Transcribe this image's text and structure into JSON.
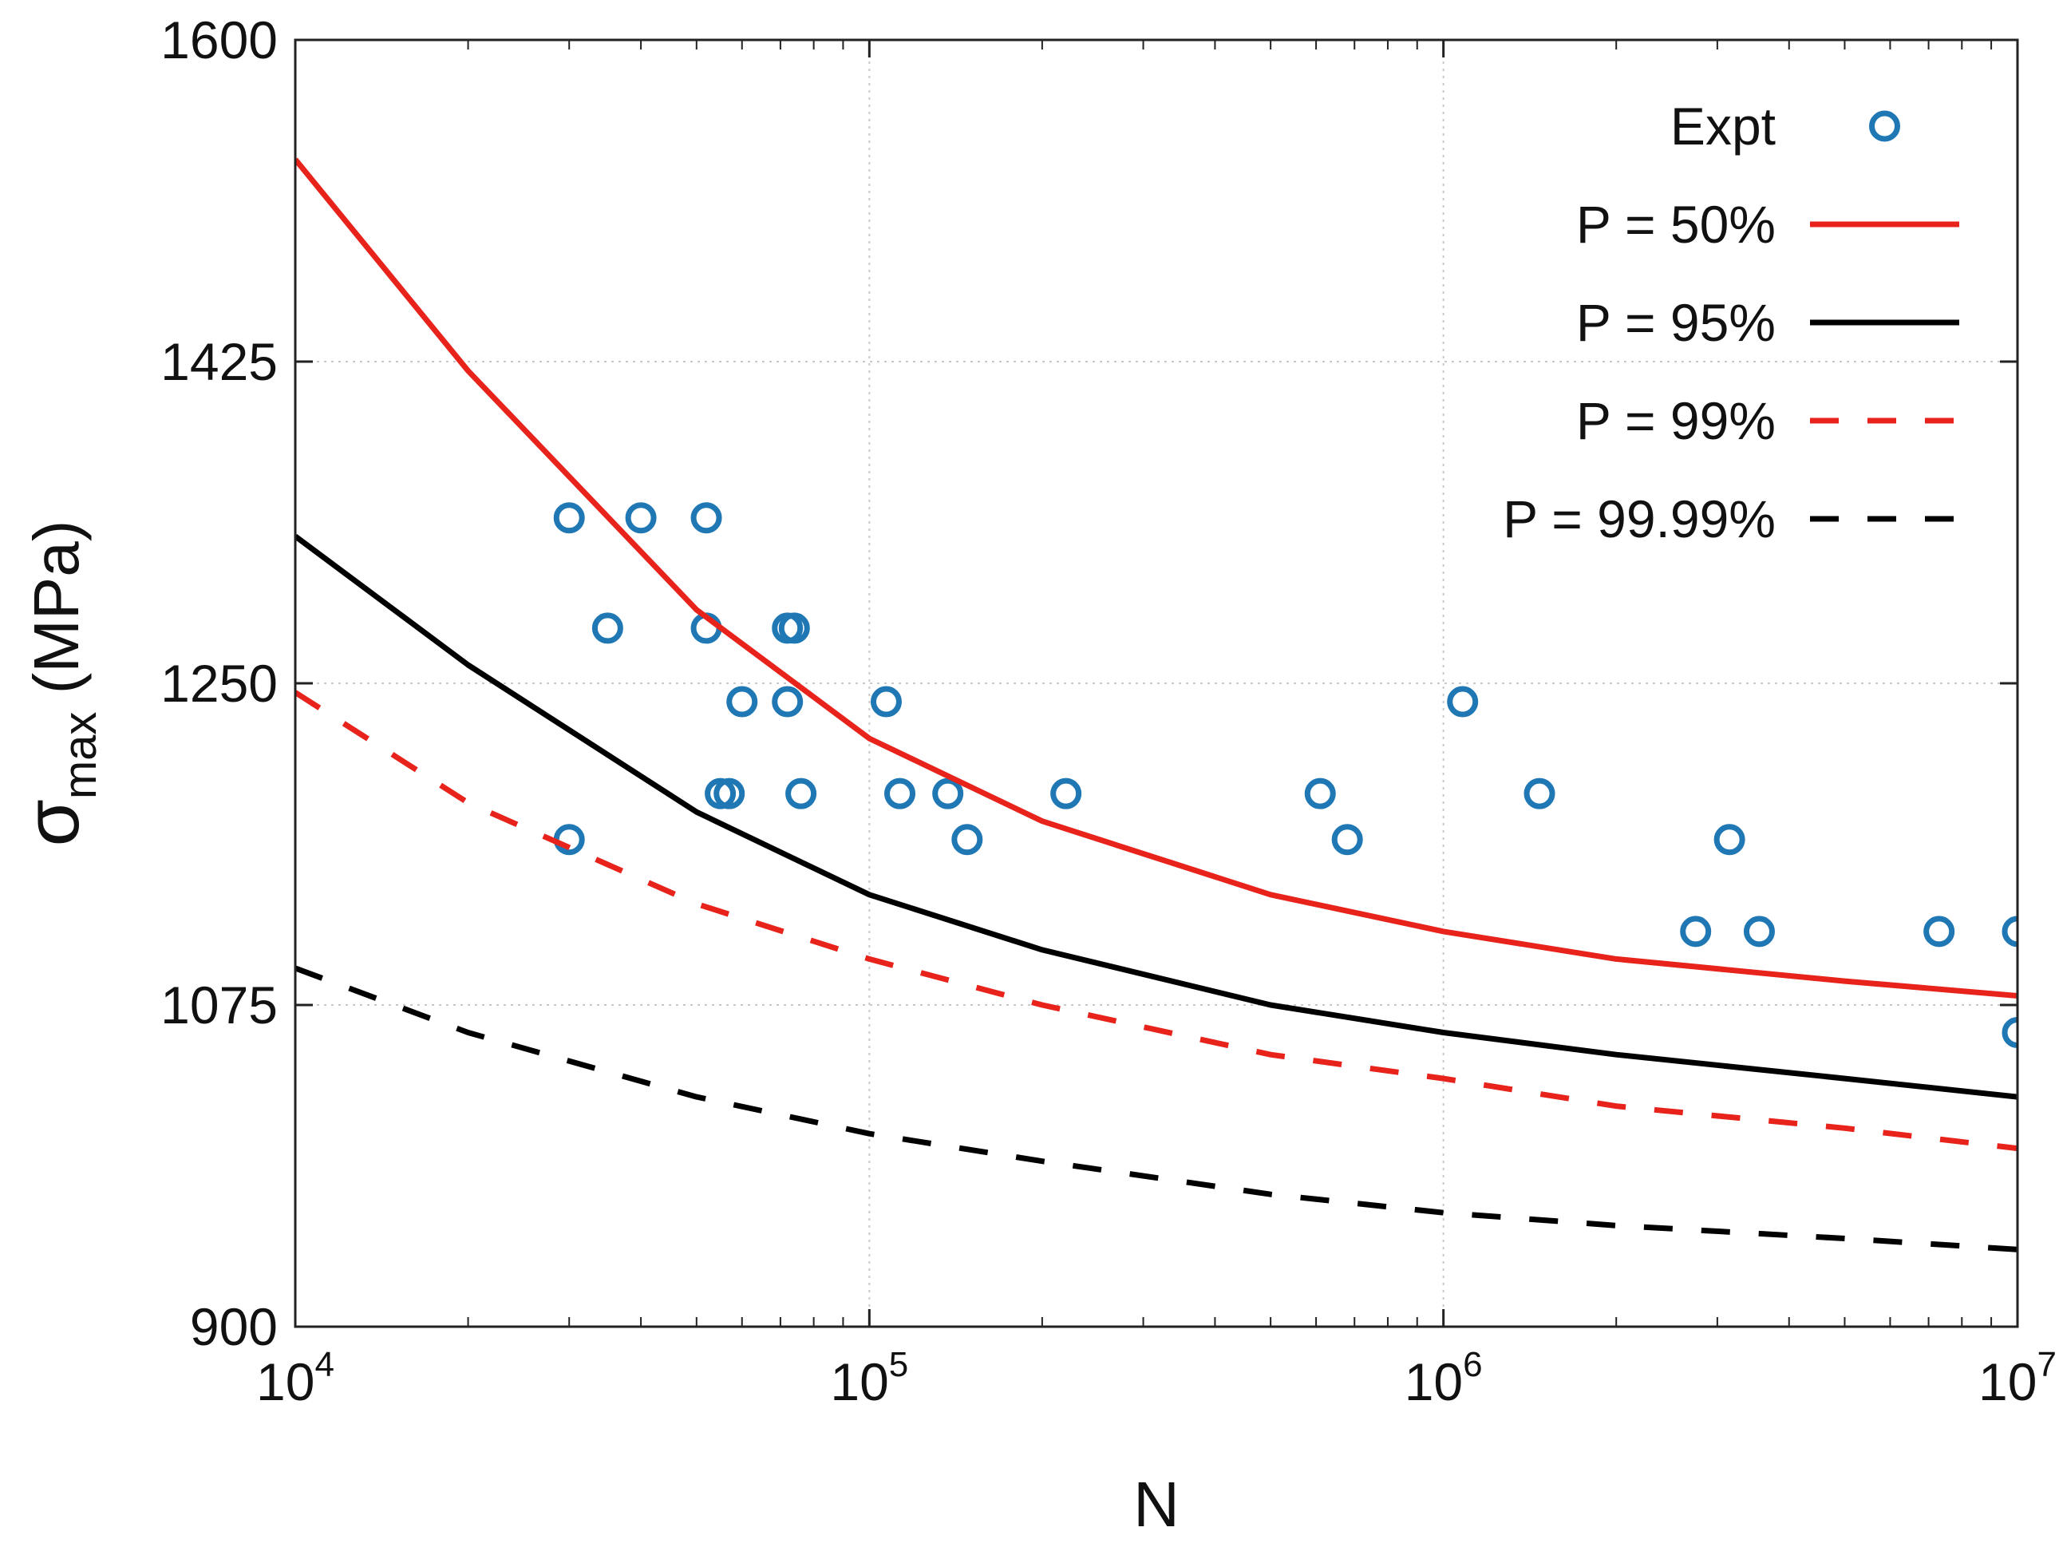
{
  "chart_data": {
    "type": "line",
    "title": "",
    "xlabel": "N",
    "ylabel": {
      "symbol": "σ",
      "subscript": "max",
      "unit": " (MPa)"
    },
    "xscale": "log",
    "xlim": [
      10000,
      10000000
    ],
    "ylim": [
      900,
      1600
    ],
    "x_ticks": [
      {
        "value": 10000,
        "base": "10",
        "exp": "4"
      },
      {
        "value": 100000,
        "base": "10",
        "exp": "5"
      },
      {
        "value": 1000000,
        "base": "10",
        "exp": "6"
      },
      {
        "value": 10000000,
        "base": "10",
        "exp": "7"
      }
    ],
    "y_ticks": [
      900,
      1075,
      1250,
      1425,
      1600
    ],
    "grid": true,
    "legend_position": "top-right",
    "series": [
      {
        "name": "Expt",
        "kind": "scatter",
        "color": "#1f77b4",
        "points": [
          [
            30000,
            1340
          ],
          [
            40000,
            1340
          ],
          [
            52000,
            1340
          ],
          [
            35000,
            1280
          ],
          [
            52000,
            1280
          ],
          [
            72000,
            1280
          ],
          [
            74000,
            1280
          ],
          [
            60000,
            1240
          ],
          [
            72000,
            1240
          ],
          [
            107000,
            1240
          ],
          [
            1080000,
            1240
          ],
          [
            55000,
            1190
          ],
          [
            57000,
            1190
          ],
          [
            76000,
            1190
          ],
          [
            113000,
            1190
          ],
          [
            137000,
            1190
          ],
          [
            220000,
            1190
          ],
          [
            610000,
            1190
          ],
          [
            1470000,
            1190
          ],
          [
            30000,
            1165
          ],
          [
            148000,
            1165
          ],
          [
            680000,
            1165
          ],
          [
            3150000,
            1165
          ],
          [
            2750000,
            1115
          ],
          [
            3550000,
            1115
          ],
          [
            7300000,
            1115
          ],
          [
            10000000,
            1115
          ],
          [
            10000000,
            1060
          ]
        ]
      },
      {
        "name": "P = 50%",
        "kind": "line",
        "color": "#e8231c",
        "dash": "solid",
        "points": [
          [
            10000,
            1535
          ],
          [
            20000,
            1420
          ],
          [
            50000,
            1290
          ],
          [
            100000,
            1220
          ],
          [
            200000,
            1175
          ],
          [
            500000,
            1135
          ],
          [
            1000000,
            1115
          ],
          [
            2000000,
            1100
          ],
          [
            5000000,
            1088
          ],
          [
            10000000,
            1080
          ]
        ]
      },
      {
        "name": "P = 95%",
        "kind": "line",
        "color": "#000000",
        "dash": "solid",
        "points": [
          [
            10000,
            1330
          ],
          [
            20000,
            1260
          ],
          [
            50000,
            1180
          ],
          [
            100000,
            1135
          ],
          [
            200000,
            1105
          ],
          [
            500000,
            1075
          ],
          [
            1000000,
            1060
          ],
          [
            2000000,
            1048
          ],
          [
            5000000,
            1035
          ],
          [
            10000000,
            1025
          ]
        ]
      },
      {
        "name": "P = 99%",
        "kind": "line",
        "color": "#e8231c",
        "dash": "dashed",
        "points": [
          [
            10000,
            1245
          ],
          [
            20000,
            1185
          ],
          [
            50000,
            1130
          ],
          [
            100000,
            1100
          ],
          [
            200000,
            1075
          ],
          [
            500000,
            1048
          ],
          [
            1000000,
            1035
          ],
          [
            2000000,
            1020
          ],
          [
            5000000,
            1008
          ],
          [
            10000000,
            997
          ]
        ]
      },
      {
        "name": "P = 99.99%",
        "kind": "line",
        "color": "#000000",
        "dash": "dashed",
        "points": [
          [
            10000,
            1095
          ],
          [
            20000,
            1060
          ],
          [
            50000,
            1025
          ],
          [
            100000,
            1005
          ],
          [
            200000,
            990
          ],
          [
            500000,
            972
          ],
          [
            1000000,
            962
          ],
          [
            2000000,
            955
          ],
          [
            5000000,
            948
          ],
          [
            10000000,
            942
          ]
        ]
      }
    ]
  }
}
